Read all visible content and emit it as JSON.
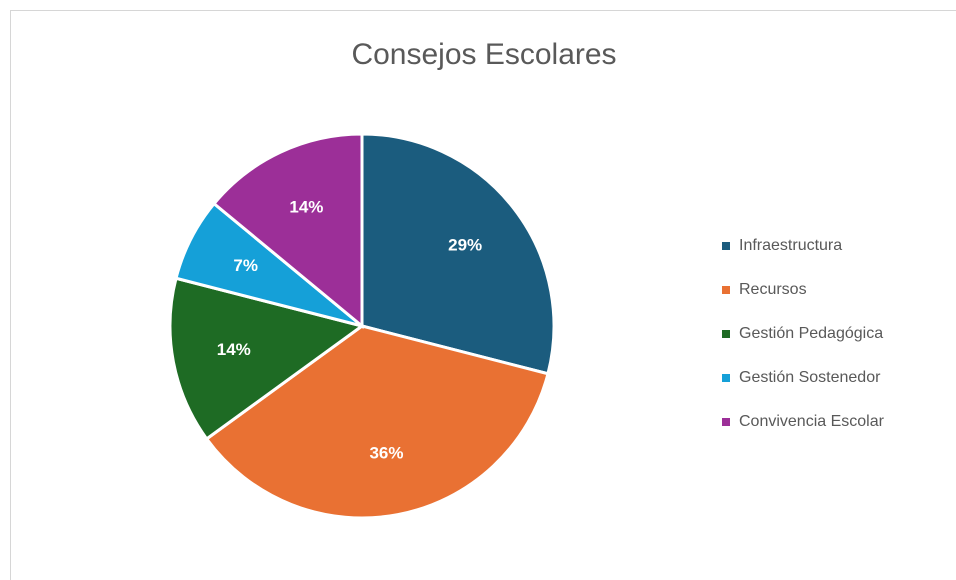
{
  "chart_data": {
    "type": "pie",
    "title": "Consejos Escolares",
    "slices": [
      {
        "label": "Infraestructura",
        "value": 29,
        "data_label": "29%",
        "color": "#1b5c7e"
      },
      {
        "label": "Recursos",
        "value": 36,
        "data_label": "36%",
        "color": "#e97133"
      },
      {
        "label": "Gestión Pedagógica",
        "value": 14,
        "data_label": "14%",
        "color": "#1e6b24"
      },
      {
        "label": "Gestión Sostenedor",
        "value": 7,
        "data_label": "7%",
        "color": "#15a0d8"
      },
      {
        "label": "Convivencia Escolar",
        "value": 14,
        "data_label": "14%",
        "color": "#9c2f98"
      }
    ],
    "legend_position": "right"
  }
}
